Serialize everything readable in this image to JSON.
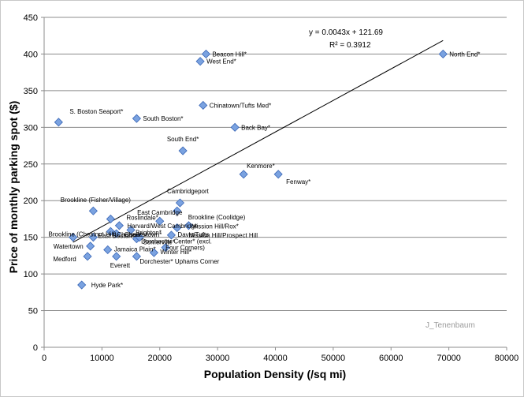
{
  "chart_data": {
    "type": "scatter",
    "xlabel": "Population Density (/sq mi)",
    "ylabel": "Price of monthly parking spot ($)",
    "xlim": [
      0,
      80000
    ],
    "ylim": [
      0,
      450
    ],
    "x_ticks": [
      0,
      10000,
      20000,
      30000,
      40000,
      50000,
      60000,
      70000,
      80000
    ],
    "y_ticks": [
      0,
      50,
      100,
      150,
      200,
      250,
      300,
      350,
      400,
      450
    ],
    "grid": "horizontal",
    "marker_color": "#7aa2e0",
    "marker_edge": "#3a67b7",
    "trendline": {
      "type": "linear",
      "slope": 0.0043,
      "intercept": 121.69,
      "x_range": [
        5000,
        69000
      ],
      "equation": "y = 0.0043x + 121.69",
      "r_squared": "R² = 0.3912"
    },
    "watermark": "J_Tenenbaum",
    "points": [
      {
        "label": "North End*",
        "x": 69000,
        "y": 400
      },
      {
        "label": "Beacon Hill*",
        "x": 28000,
        "y": 400
      },
      {
        "label": "West End*",
        "x": 27000,
        "y": 390
      },
      {
        "label": "Chinatown/Tufts Med*",
        "x": 27500,
        "y": 330
      },
      {
        "label": "S. Boston Seaport*",
        "x": 2500,
        "y": 307
      },
      {
        "label": "South Boston*",
        "x": 16000,
        "y": 312
      },
      {
        "label": "Back Bay*",
        "x": 33000,
        "y": 300
      },
      {
        "label": "South End*",
        "x": 24000,
        "y": 268
      },
      {
        "label": "Kenmore*",
        "x": 34500,
        "y": 236
      },
      {
        "label": "Fenway*",
        "x": 40500,
        "y": 236
      },
      {
        "label": "Cambridgeport",
        "x": 23500,
        "y": 197
      },
      {
        "label": "Brookline (Coolidge)",
        "x": 23000,
        "y": 186
      },
      {
        "label": "Brookline (Fisher/Village)",
        "x": 8500,
        "y": 186
      },
      {
        "label": "East Cambridge",
        "x": 20000,
        "y": 172
      },
      {
        "label": "Roslindale*",
        "x": 11500,
        "y": 175
      },
      {
        "label": "Harvard/West Cambridge",
        "x": 13000,
        "y": 166
      },
      {
        "label": "Mission Hill/Prospect Hill",
        "x": 25000,
        "y": 166
      },
      {
        "label": "Brighton*",
        "x": 15000,
        "y": 160
      },
      {
        "label": "Mission Hill/Rox*",
        "x": 23000,
        "y": 163
      },
      {
        "label": "Brookline (Chestnut Hill)",
        "x": 5000,
        "y": 150
      },
      {
        "label": "Chelsea*",
        "x": 11500,
        "y": 158
      },
      {
        "label": "East Boston*",
        "x": 8500,
        "y": 150
      },
      {
        "label": "Charlestown*",
        "x": 12500,
        "y": 155
      },
      {
        "label": "Davis/Tufts",
        "x": 22000,
        "y": 153
      },
      {
        "label": "Somerville*",
        "x": 16000,
        "y": 148
      },
      {
        "label": "Dorchester Center* (excl.",
        "x": 16500,
        "y": 150
      },
      {
        "label": "Watertown",
        "x": 8000,
        "y": 138
      },
      {
        "label": "Jamaica Plain*",
        "x": 11000,
        "y": 133
      },
      {
        "label": "Four Corners)",
        "x": 21000,
        "y": 136
      },
      {
        "label": "Winter Hill*",
        "x": 19000,
        "y": 129
      },
      {
        "label": "Medford",
        "x": 7500,
        "y": 124
      },
      {
        "label": "Everett",
        "x": 12500,
        "y": 124
      },
      {
        "label": "Dorchester* Uphams Corner",
        "x": 16000,
        "y": 124
      },
      {
        "label": "Hyde Park*",
        "x": 6500,
        "y": 85
      }
    ]
  }
}
